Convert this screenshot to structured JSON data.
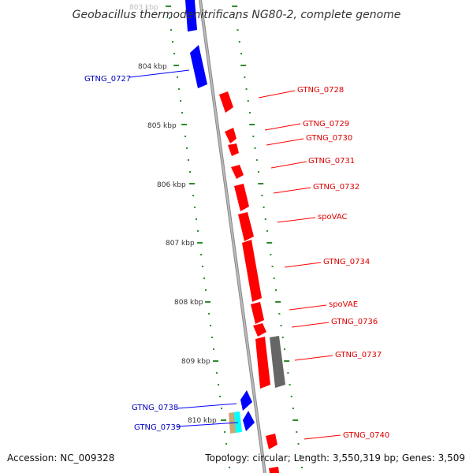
{
  "title": "Geobacillus thermodenitrificans NG80-2, complete genome",
  "accession": "Accession: NC_009328",
  "summary": "Topology: circular; Length: 3,550,319 bp; Genes: 3,509",
  "colors": {
    "forward": "#ff0000",
    "reverse": "#0000ff",
    "forward_label": "#dd0000",
    "reverse_label": "#0000bb",
    "other": "#666666",
    "tick": "#2e8b2e",
    "backbone": "#999999",
    "cyan": "#00ffff",
    "tan": "#c8a878"
  },
  "kbp_labels": [
    "803 kbp",
    "804 kbp",
    "805 kbp",
    "806 kbp",
    "807 kbp",
    "808 kbp",
    "809 kbp",
    "810 kbp"
  ],
  "genes_reverse": [
    "GTNG_0727",
    "GTNG_0738",
    "GTNG_0739"
  ],
  "genes_forward": [
    "GTNG_0728",
    "GTNG_0729",
    "GTNG_0730",
    "GTNG_0731",
    "GTNG_0732",
    "spoVAC",
    "GTNG_0734",
    "spoVAE",
    "GTNG_0736",
    "GTNG_0737",
    "GTNG_0740"
  ]
}
